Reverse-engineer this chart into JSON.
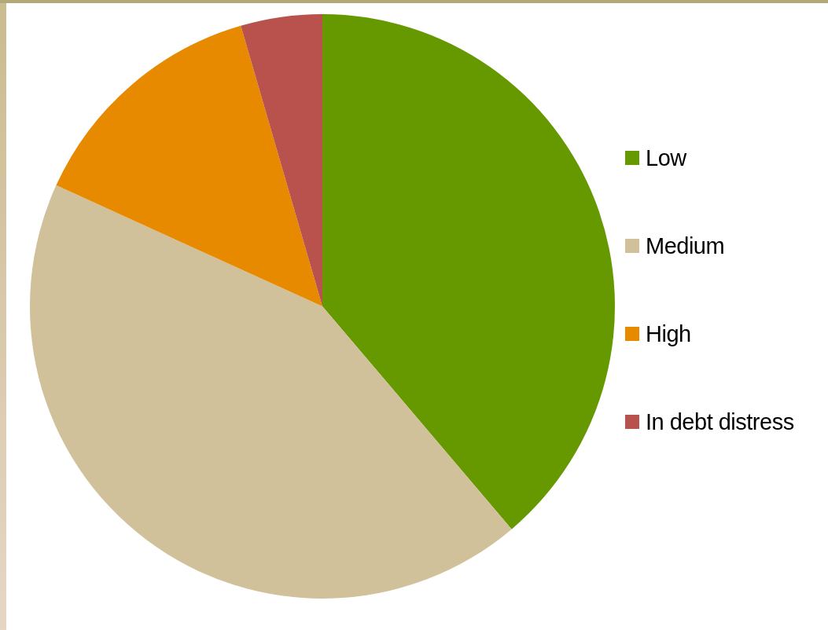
{
  "chart_data": {
    "type": "pie",
    "categories": [
      "Low",
      "Medium",
      "High",
      "In debt distress"
    ],
    "values": [
      38.8,
      43.0,
      13.7,
      4.5
    ],
    "colors": [
      "#669900",
      "#d1c19a",
      "#e88a00",
      "#b9514d"
    ],
    "legend": "right"
  }
}
